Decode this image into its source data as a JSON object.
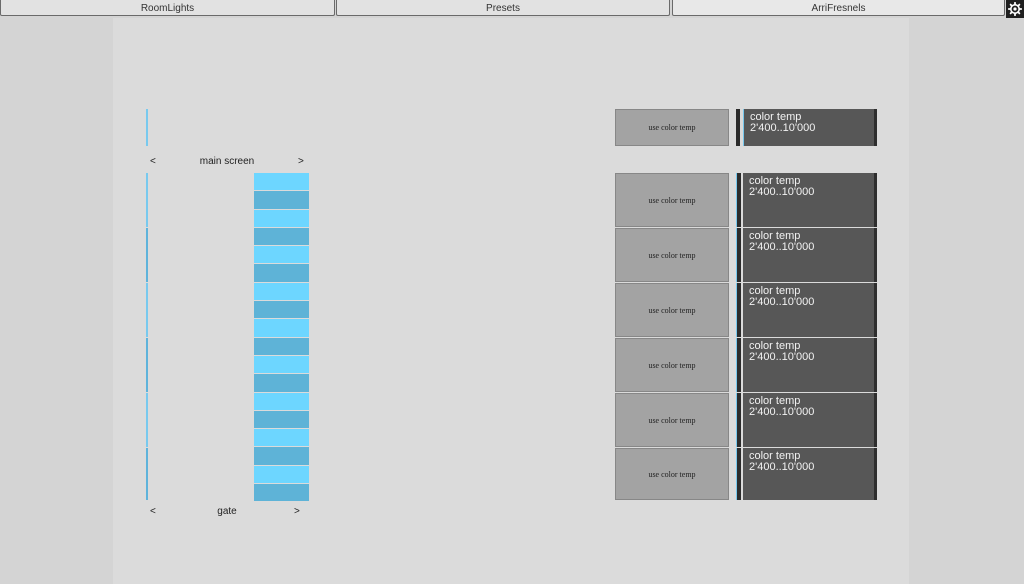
{
  "tabs": [
    {
      "label": "RoomLights"
    },
    {
      "label": "Presets"
    },
    {
      "label": "ArriFresnels"
    }
  ],
  "settings_icon": "gear-icon",
  "nav_top": {
    "prev": "<",
    "label": "main screen",
    "next": ">"
  },
  "nav_bottom": {
    "prev": "<",
    "label": "gate",
    "next": ">"
  },
  "colors": {
    "light_blue": "#6dd6ff",
    "mid_blue": "#5eb3d7",
    "panel_dark": "#575757",
    "button": "#a3a3a3"
  },
  "header_control": {
    "button_label": "use color temp",
    "title": "color temp",
    "range": "2'400..10'000"
  },
  "controls": [
    {
      "button_label": "use color temp",
      "title": "color temp",
      "range": "2'400..10'000"
    },
    {
      "button_label": "use color temp",
      "title": "color temp",
      "range": "2'400..10'000"
    },
    {
      "button_label": "use color temp",
      "title": "color temp",
      "range": "2'400..10'000"
    },
    {
      "button_label": "use color temp",
      "title": "color temp",
      "range": "2'400..10'000"
    },
    {
      "button_label": "use color temp",
      "title": "color temp",
      "range": "2'400..10'000"
    },
    {
      "button_label": "use color temp",
      "title": "color temp",
      "range": "2'400..10'000"
    }
  ]
}
